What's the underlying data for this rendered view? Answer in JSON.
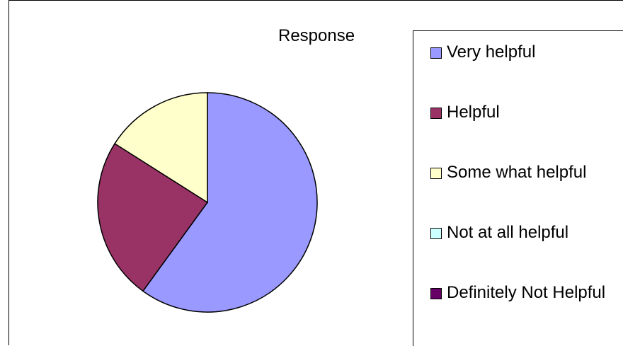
{
  "chart_data": {
    "type": "pie",
    "title": "Response",
    "categories": [
      "Very helpful",
      "Helpful",
      "Some what helpful",
      "Not at all helpful",
      "Definitely Not Helpful"
    ],
    "values": [
      60,
      24,
      16,
      0,
      0
    ],
    "colors": [
      "#9999ff",
      "#993366",
      "#ffffcc",
      "#ccffff",
      "#660066"
    ],
    "legend": "right"
  }
}
